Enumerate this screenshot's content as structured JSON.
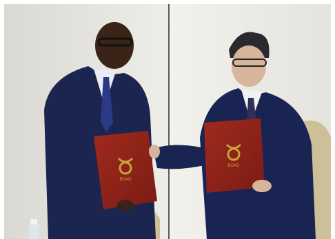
{
  "photo": {
    "folder_logo_text": "BOAD",
    "colors": {
      "wall": "#ecebe6",
      "suit_navy": "#1c2550",
      "folder_red": "#8f2219",
      "folder_gold": "#c9a237",
      "chair_beige": "#cdbf98"
    }
  }
}
